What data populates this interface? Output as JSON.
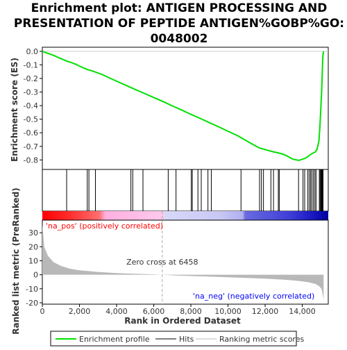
{
  "chart_data": {
    "type": "line",
    "title_lines": [
      "Enrichment plot: ANTIGEN PROCESSING AND",
      "PRESENTATION OF PEPTIDE ANTIGEN%GOBP%GO:",
      "0048002"
    ],
    "top_panel": {
      "ylabel": "Enrichment score (ES)",
      "ylim": [
        -0.87,
        0.03
      ],
      "yticks": [
        0.0,
        -0.1,
        -0.2,
        -0.3,
        -0.4,
        -0.5,
        -0.6,
        -0.7,
        -0.8
      ],
      "ytick_labels": [
        "0.0",
        "-0.1",
        "-0.2",
        "-0.3",
        "-0.4",
        "-0.5",
        "-0.6",
        "-0.7",
        "-0.8"
      ],
      "series": [
        {
          "name": "Enrichment profile",
          "color": "#00e000",
          "x": [
            0,
            300,
            600,
            900,
            1200,
            1300,
            1500,
            1800,
            2100,
            2400,
            2500,
            2700,
            2900,
            3200,
            3600,
            4000,
            4500,
            5000,
            5500,
            6000,
            6500,
            7000,
            7500,
            8000,
            8500,
            9000,
            9500,
            10000,
            10500,
            10900,
            11200,
            11500,
            11700,
            11900,
            12100,
            12300,
            12500,
            12700,
            12900,
            13100,
            13300,
            13500,
            13700,
            13800,
            13900,
            14000,
            14100,
            14200,
            14300,
            14400,
            14500,
            14600,
            14700,
            14800,
            14900,
            14950,
            15000,
            15050,
            15080,
            15100,
            15120,
            15150
          ],
          "y": [
            0.0,
            -0.015,
            -0.03,
            -0.048,
            -0.065,
            -0.072,
            -0.08,
            -0.096,
            -0.115,
            -0.133,
            -0.137,
            -0.145,
            -0.155,
            -0.17,
            -0.195,
            -0.22,
            -0.25,
            -0.281,
            -0.31,
            -0.34,
            -0.37,
            -0.402,
            -0.432,
            -0.464,
            -0.494,
            -0.526,
            -0.556,
            -0.589,
            -0.62,
            -0.651,
            -0.675,
            -0.698,
            -0.712,
            -0.72,
            -0.728,
            -0.735,
            -0.742,
            -0.748,
            -0.755,
            -0.765,
            -0.78,
            -0.795,
            -0.8,
            -0.803,
            -0.8,
            -0.795,
            -0.79,
            -0.785,
            -0.775,
            -0.765,
            -0.755,
            -0.748,
            -0.742,
            -0.72,
            -0.66,
            -0.55,
            -0.42,
            -0.28,
            -0.15,
            -0.06,
            -0.02,
            0.0
          ]
        }
      ]
    },
    "hits": [
      1310,
      2420,
      2510,
      2860,
      4770,
      4870,
      5420,
      6780,
      7200,
      8020,
      8080,
      8380,
      8560,
      8920,
      9100,
      10700,
      11700,
      11800,
      11910,
      12310,
      12450,
      12710,
      12760,
      13800,
      14040,
      14130,
      14300,
      14380,
      14450,
      14520,
      14600,
      14680,
      14740,
      14920,
      14960,
      15000,
      15030,
      15060,
      15090,
      15120
    ],
    "bottom_panel": {
      "ylabel": "Ranked list metric (PreRanked)",
      "xlabel": "Rank in Ordered Dataset",
      "xlim": [
        0,
        15400
      ],
      "ylim": [
        -21,
        39
      ],
      "yticks": [
        30,
        20,
        10,
        0,
        -10,
        -20
      ],
      "ytick_labels": [
        "30",
        "20",
        "10",
        "0",
        "-10",
        "-20"
      ],
      "xticks": [
        0,
        2000,
        4000,
        6000,
        8000,
        10000,
        12000,
        14000
      ],
      "xtick_labels": [
        "0",
        "2,000",
        "4,000",
        "6,000",
        "8,000",
        "10,000",
        "12,000",
        "14,000"
      ],
      "metric_x": [
        0,
        100,
        300,
        600,
        1000,
        1500,
        2000,
        3000,
        4000,
        5000,
        6000,
        6458,
        7000,
        8000,
        9000,
        10000,
        11000,
        12000,
        13000,
        13500,
        14000,
        14400,
        14700,
        14900,
        15000,
        15060,
        15100,
        15150
      ],
      "metric_y": [
        36,
        20,
        13.5,
        9,
        6.3,
        4.3,
        3.2,
        2.0,
        1.2,
        0.7,
        0.3,
        0,
        -0.4,
        -0.9,
        -1.3,
        -1.8,
        -2.3,
        -2.8,
        -3.5,
        -4.0,
        -4.7,
        -5.5,
        -6.5,
        -8.0,
        -9.5,
        -11,
        -14,
        -18
      ],
      "zero_cross_rank": 6458,
      "zero_cross_label": "Zero cross at 6458",
      "pos_label": "'na_pos' (positively correlated)",
      "neg_label": "'na_neg' (negatively correlated)",
      "pos_color": "#ff0000",
      "neg_color": "#0000ff"
    },
    "legend": {
      "items": [
        {
          "label": "Enrichment profile",
          "color": "#00e000"
        },
        {
          "label": "Hits",
          "color": "#000000"
        },
        {
          "label": "Ranking metric scores",
          "color": "#bbbbbb"
        }
      ]
    }
  }
}
